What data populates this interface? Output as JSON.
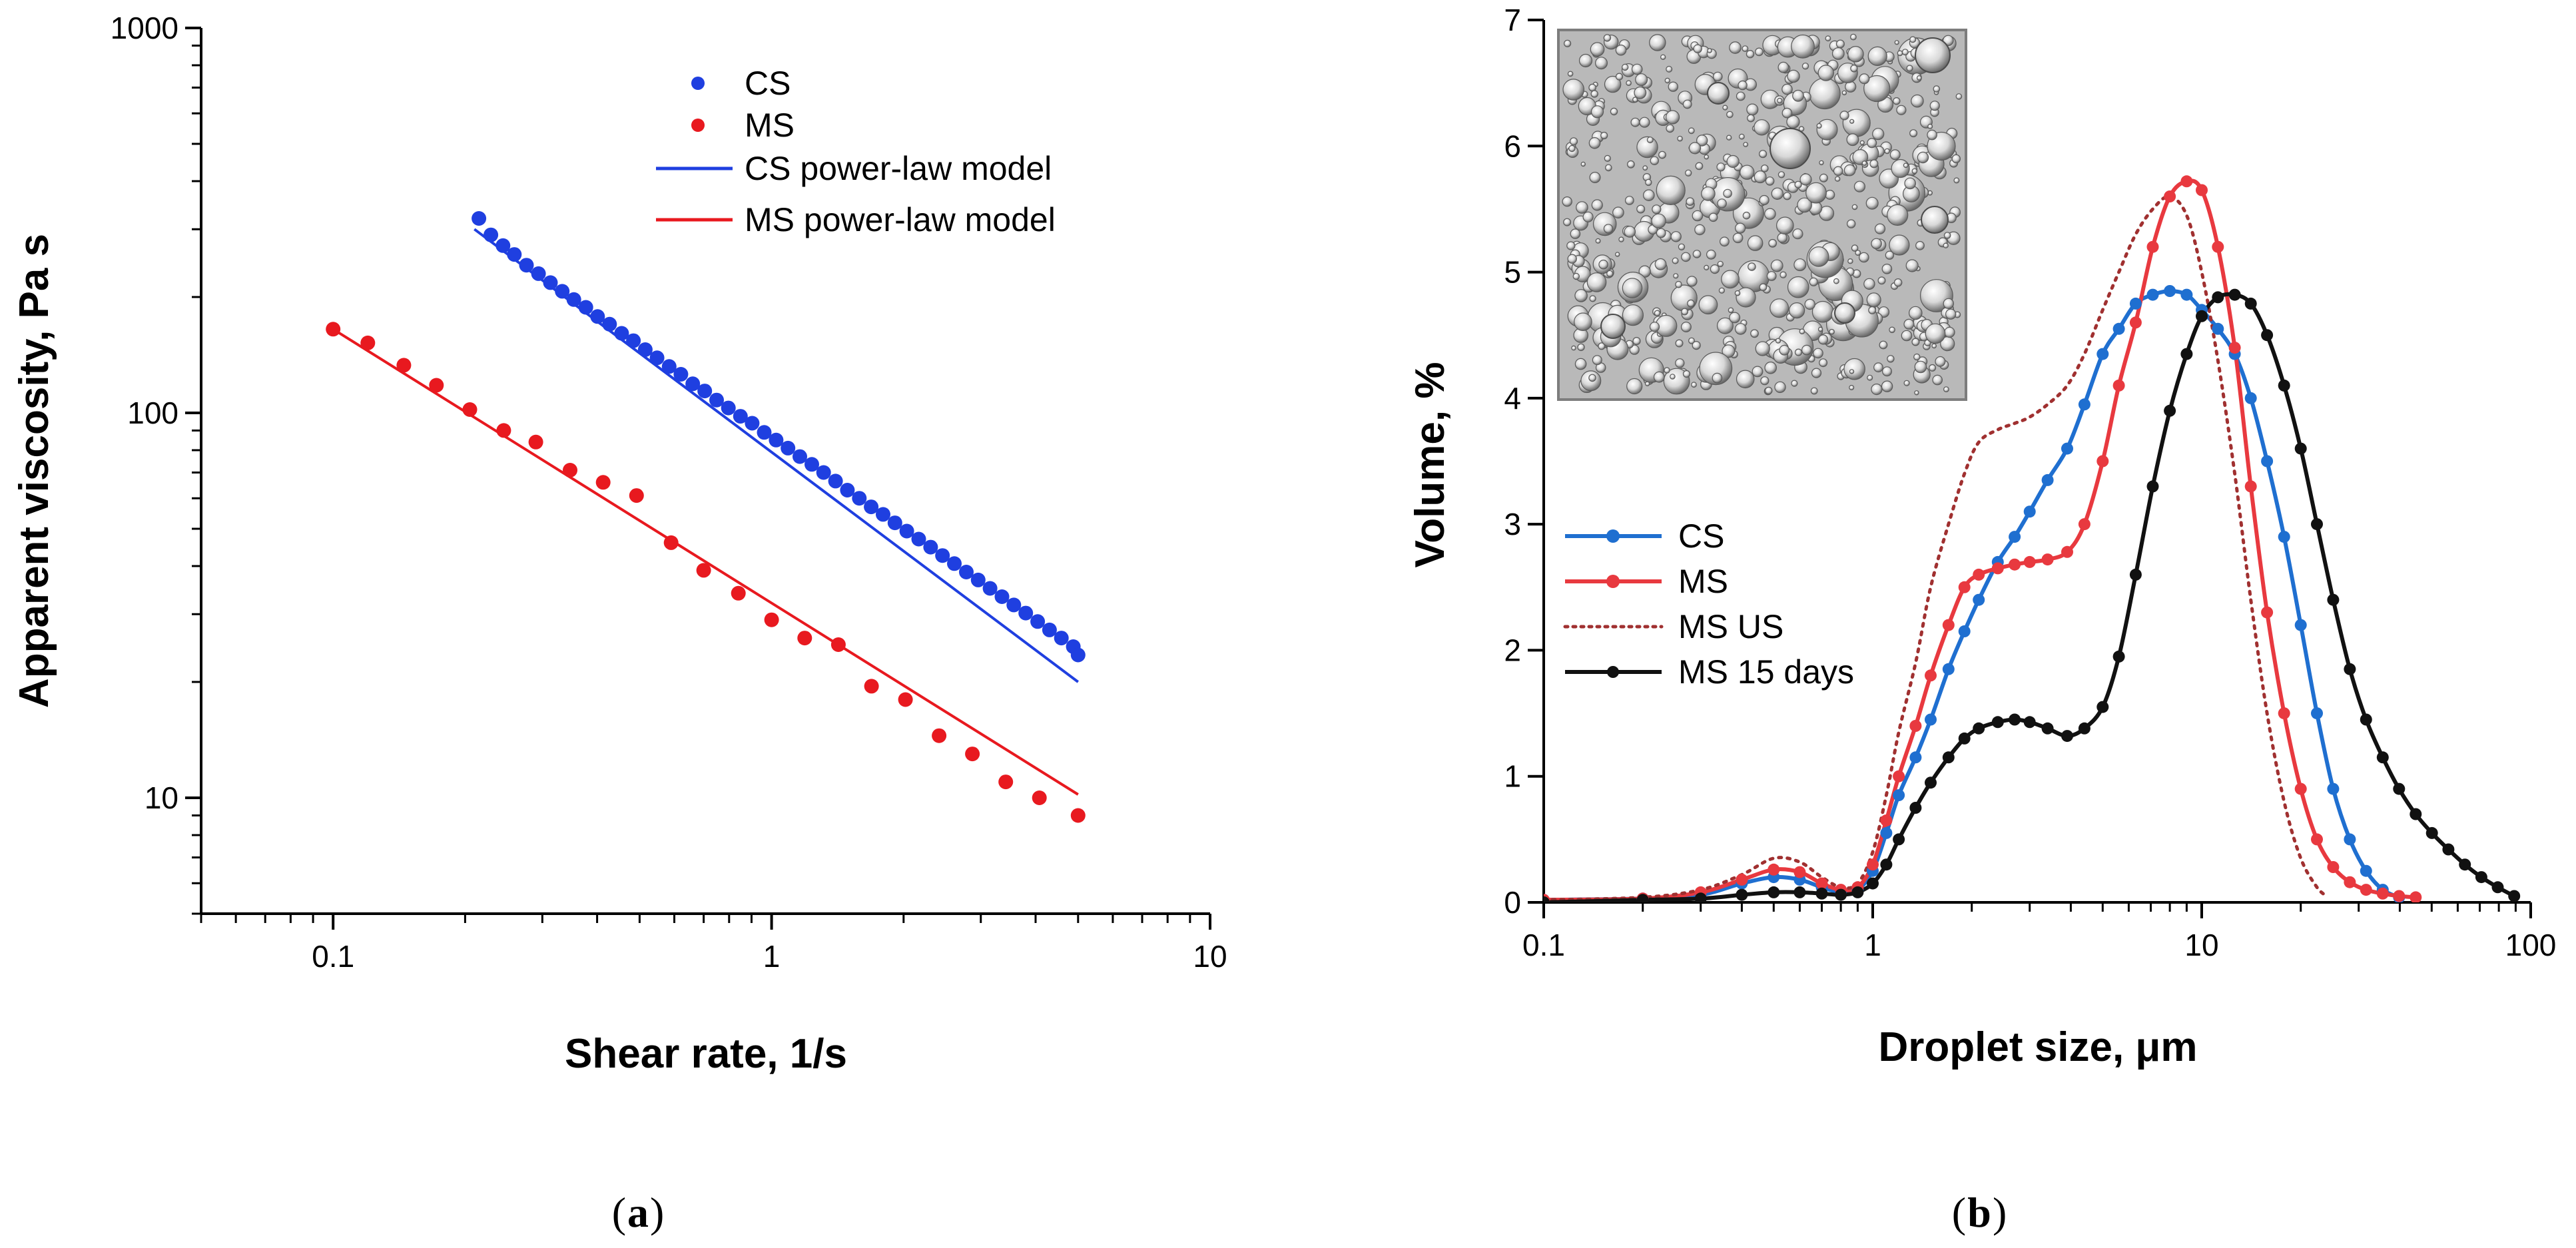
{
  "chart_data": [
    {
      "type": "scatter",
      "panel_label": "a",
      "title": "",
      "xlabel": "Shear rate, 1/s",
      "ylabel": "Apparent viscosity, Pa s",
      "xscale": "log",
      "yscale": "log",
      "xlim": [
        0.05,
        10
      ],
      "ylim": [
        5,
        1000
      ],
      "x_tick_labels": [
        {
          "value": 0.1,
          "label": "0.1"
        },
        {
          "value": 1,
          "label": "1"
        },
        {
          "value": 10,
          "label": "10"
        }
      ],
      "y_tick_labels": [
        {
          "value": 10,
          "label": "10"
        },
        {
          "value": 100,
          "label": "100"
        },
        {
          "value": 1000,
          "label": "1000"
        }
      ],
      "legend_position": "top-right",
      "series": [
        {
          "name": "CS",
          "kind": "markers",
          "color": "#1f3fe0",
          "x": [
            0.215,
            0.229,
            0.244,
            0.259,
            0.276,
            0.294,
            0.313,
            0.333,
            0.354,
            0.377,
            0.401,
            0.427,
            0.455,
            0.484,
            0.515,
            0.548,
            0.584,
            0.621,
            0.661,
            0.704,
            0.749,
            0.797,
            0.849,
            0.903,
            0.962,
            1.024,
            1.09,
            1.16,
            1.235,
            1.314,
            1.399,
            1.489,
            1.585,
            1.687,
            1.796,
            1.911,
            2.034,
            2.165,
            2.305,
            2.453,
            2.611,
            2.78,
            2.959,
            3.149,
            3.352,
            3.568,
            3.798,
            4.043,
            4.303,
            4.58,
            4.875,
            5.0
          ],
          "y": [
            320,
            290,
            272,
            258,
            242,
            230,
            218,
            207,
            197,
            188,
            178,
            170,
            161,
            154,
            146,
            139,
            132,
            126,
            119,
            114,
            108,
            103,
            98,
            94,
            89,
            85,
            81,
            77,
            73.5,
            70,
            66.5,
            63,
            60,
            57,
            54.5,
            51.8,
            49.3,
            47,
            44.8,
            42.6,
            40.6,
            38.6,
            36.8,
            35,
            33.3,
            31.7,
            30.2,
            28.7,
            27.3,
            26,
            24.7,
            23.5
          ]
        },
        {
          "name": "MS",
          "kind": "markers",
          "color": "#e8191f",
          "x": [
            0.1,
            0.12,
            0.145,
            0.172,
            0.205,
            0.245,
            0.29,
            0.347,
            0.413,
            0.492,
            0.59,
            0.7,
            0.84,
            1.0,
            1.19,
            1.42,
            1.69,
            2.02,
            2.41,
            2.87,
            3.42,
            4.08,
            5.0
          ],
          "y": [
            165,
            152,
            133,
            118,
            102,
            90,
            84,
            71,
            66,
            61,
            46,
            39,
            34,
            29,
            26,
            25,
            19.5,
            18,
            14.5,
            13,
            11,
            10,
            9
          ]
        },
        {
          "name": "CS power-law model",
          "kind": "line",
          "color": "#1f3fe0",
          "x": [
            0.21,
            5.0
          ],
          "y": [
            300,
            20
          ]
        },
        {
          "name": "MS power-law model",
          "kind": "line",
          "color": "#e8191f",
          "x": [
            0.1,
            5.0
          ],
          "y": [
            165,
            10.2
          ]
        }
      ]
    },
    {
      "type": "line",
      "panel_label": "b",
      "title": "",
      "xlabel": "Droplet size, μm",
      "ylabel": "Volume, %",
      "xscale": "log",
      "yscale": "linear",
      "xlim": [
        0.1,
        100
      ],
      "ylim": [
        0,
        7
      ],
      "x_tick_labels": [
        {
          "value": 0.1,
          "label": "0.1"
        },
        {
          "value": 1,
          "label": "1"
        },
        {
          "value": 10,
          "label": "10"
        },
        {
          "value": 100,
          "label": "100"
        }
      ],
      "y_tick_labels": [
        {
          "value": 0,
          "label": "0"
        },
        {
          "value": 1,
          "label": "1"
        },
        {
          "value": 2,
          "label": "2"
        },
        {
          "value": 3,
          "label": "3"
        },
        {
          "value": 4,
          "label": "4"
        },
        {
          "value": 5,
          "label": "5"
        },
        {
          "value": 6,
          "label": "6"
        },
        {
          "value": 7,
          "label": "7"
        }
      ],
      "legend_position": "middle-left",
      "inset": "optical micrograph of emulsion droplets (top-left)",
      "series": [
        {
          "name": "CS",
          "kind": "line-markers",
          "color": "#1f6fd0",
          "x": [
            0.1,
            0.2,
            0.3,
            0.4,
            0.5,
            0.6,
            0.7,
            0.8,
            0.9,
            1.0,
            1.1,
            1.2,
            1.35,
            1.5,
            1.7,
            1.9,
            2.1,
            2.4,
            2.7,
            3.0,
            3.4,
            3.9,
            4.4,
            5.0,
            5.6,
            6.3,
            7.1,
            8.0,
            9.0,
            10.0,
            11.2,
            12.6,
            14.1,
            15.8,
            17.8,
            20.0,
            22.4,
            25.1,
            28.2,
            31.6,
            35.5,
            39.8
          ],
          "y": [
            0.02,
            0.03,
            0.06,
            0.15,
            0.2,
            0.18,
            0.12,
            0.08,
            0.1,
            0.25,
            0.55,
            0.85,
            1.15,
            1.45,
            1.85,
            2.15,
            2.4,
            2.7,
            2.9,
            3.1,
            3.35,
            3.6,
            3.95,
            4.35,
            4.55,
            4.75,
            4.82,
            4.85,
            4.82,
            4.7,
            4.55,
            4.35,
            4.0,
            3.5,
            2.9,
            2.2,
            1.5,
            0.9,
            0.5,
            0.25,
            0.1,
            0.04
          ]
        },
        {
          "name": "MS",
          "kind": "line-markers",
          "color": "#e8393f",
          "x": [
            0.1,
            0.2,
            0.3,
            0.4,
            0.5,
            0.6,
            0.7,
            0.8,
            0.9,
            1.0,
            1.1,
            1.2,
            1.35,
            1.5,
            1.7,
            1.9,
            2.1,
            2.4,
            2.7,
            3.0,
            3.4,
            3.9,
            4.4,
            5.0,
            5.6,
            6.3,
            7.1,
            8.0,
            9.0,
            10.0,
            11.2,
            12.6,
            14.1,
            15.8,
            17.8,
            20.0,
            22.4,
            25.1,
            28.2,
            31.6,
            35.5,
            39.8,
            44.7
          ],
          "y": [
            0.02,
            0.03,
            0.08,
            0.18,
            0.26,
            0.24,
            0.15,
            0.1,
            0.12,
            0.3,
            0.65,
            1.0,
            1.4,
            1.8,
            2.2,
            2.5,
            2.6,
            2.65,
            2.68,
            2.7,
            2.72,
            2.78,
            3.0,
            3.5,
            4.1,
            4.6,
            5.2,
            5.6,
            5.72,
            5.65,
            5.2,
            4.4,
            3.3,
            2.3,
            1.5,
            0.9,
            0.5,
            0.28,
            0.16,
            0.1,
            0.07,
            0.05,
            0.04
          ]
        },
        {
          "name": "MS US",
          "kind": "dotted-line",
          "color": "#a03030",
          "x": [
            0.1,
            0.2,
            0.3,
            0.4,
            0.5,
            0.6,
            0.7,
            0.8,
            0.9,
            1.0,
            1.1,
            1.2,
            1.35,
            1.5,
            1.7,
            1.9,
            2.1,
            2.4,
            2.7,
            3.0,
            3.4,
            3.9,
            4.4,
            5.0,
            5.6,
            6.3,
            7.1,
            8.0,
            9.0,
            10.0,
            11.2,
            12.6,
            14.1,
            15.8,
            17.8,
            20.0,
            22.4,
            24.0
          ],
          "y": [
            0.02,
            0.04,
            0.1,
            0.22,
            0.35,
            0.32,
            0.2,
            0.12,
            0.15,
            0.4,
            0.85,
            1.35,
            1.9,
            2.5,
            3.0,
            3.4,
            3.65,
            3.75,
            3.8,
            3.85,
            3.95,
            4.1,
            4.35,
            4.7,
            5.0,
            5.3,
            5.5,
            5.6,
            5.45,
            5.0,
            4.3,
            3.4,
            2.4,
            1.5,
            0.8,
            0.35,
            0.12,
            0.05
          ]
        },
        {
          "name": "MS 15 days",
          "kind": "line-markers",
          "color": "#111111",
          "x": [
            0.1,
            0.2,
            0.3,
            0.4,
            0.5,
            0.6,
            0.7,
            0.8,
            0.9,
            1.0,
            1.1,
            1.2,
            1.35,
            1.5,
            1.7,
            1.9,
            2.1,
            2.4,
            2.7,
            3.0,
            3.4,
            3.9,
            4.4,
            5.0,
            5.6,
            6.3,
            7.1,
            8.0,
            9.0,
            10.0,
            11.2,
            12.6,
            14.1,
            15.8,
            17.8,
            20.0,
            22.4,
            25.1,
            28.2,
            31.6,
            35.5,
            39.8,
            44.7,
            50.1,
            56.2,
            63.1,
            70.8,
            79.4,
            89.1
          ],
          "y": [
            0.0,
            0.02,
            0.03,
            0.06,
            0.08,
            0.08,
            0.07,
            0.06,
            0.08,
            0.15,
            0.3,
            0.5,
            0.75,
            0.95,
            1.15,
            1.3,
            1.38,
            1.43,
            1.45,
            1.43,
            1.38,
            1.32,
            1.38,
            1.55,
            1.95,
            2.6,
            3.3,
            3.9,
            4.35,
            4.65,
            4.8,
            4.82,
            4.75,
            4.5,
            4.1,
            3.6,
            3.0,
            2.4,
            1.85,
            1.45,
            1.15,
            0.9,
            0.7,
            0.55,
            0.42,
            0.3,
            0.2,
            0.12,
            0.05
          ]
        }
      ]
    }
  ],
  "captions": {
    "a": "a",
    "b": "b"
  }
}
